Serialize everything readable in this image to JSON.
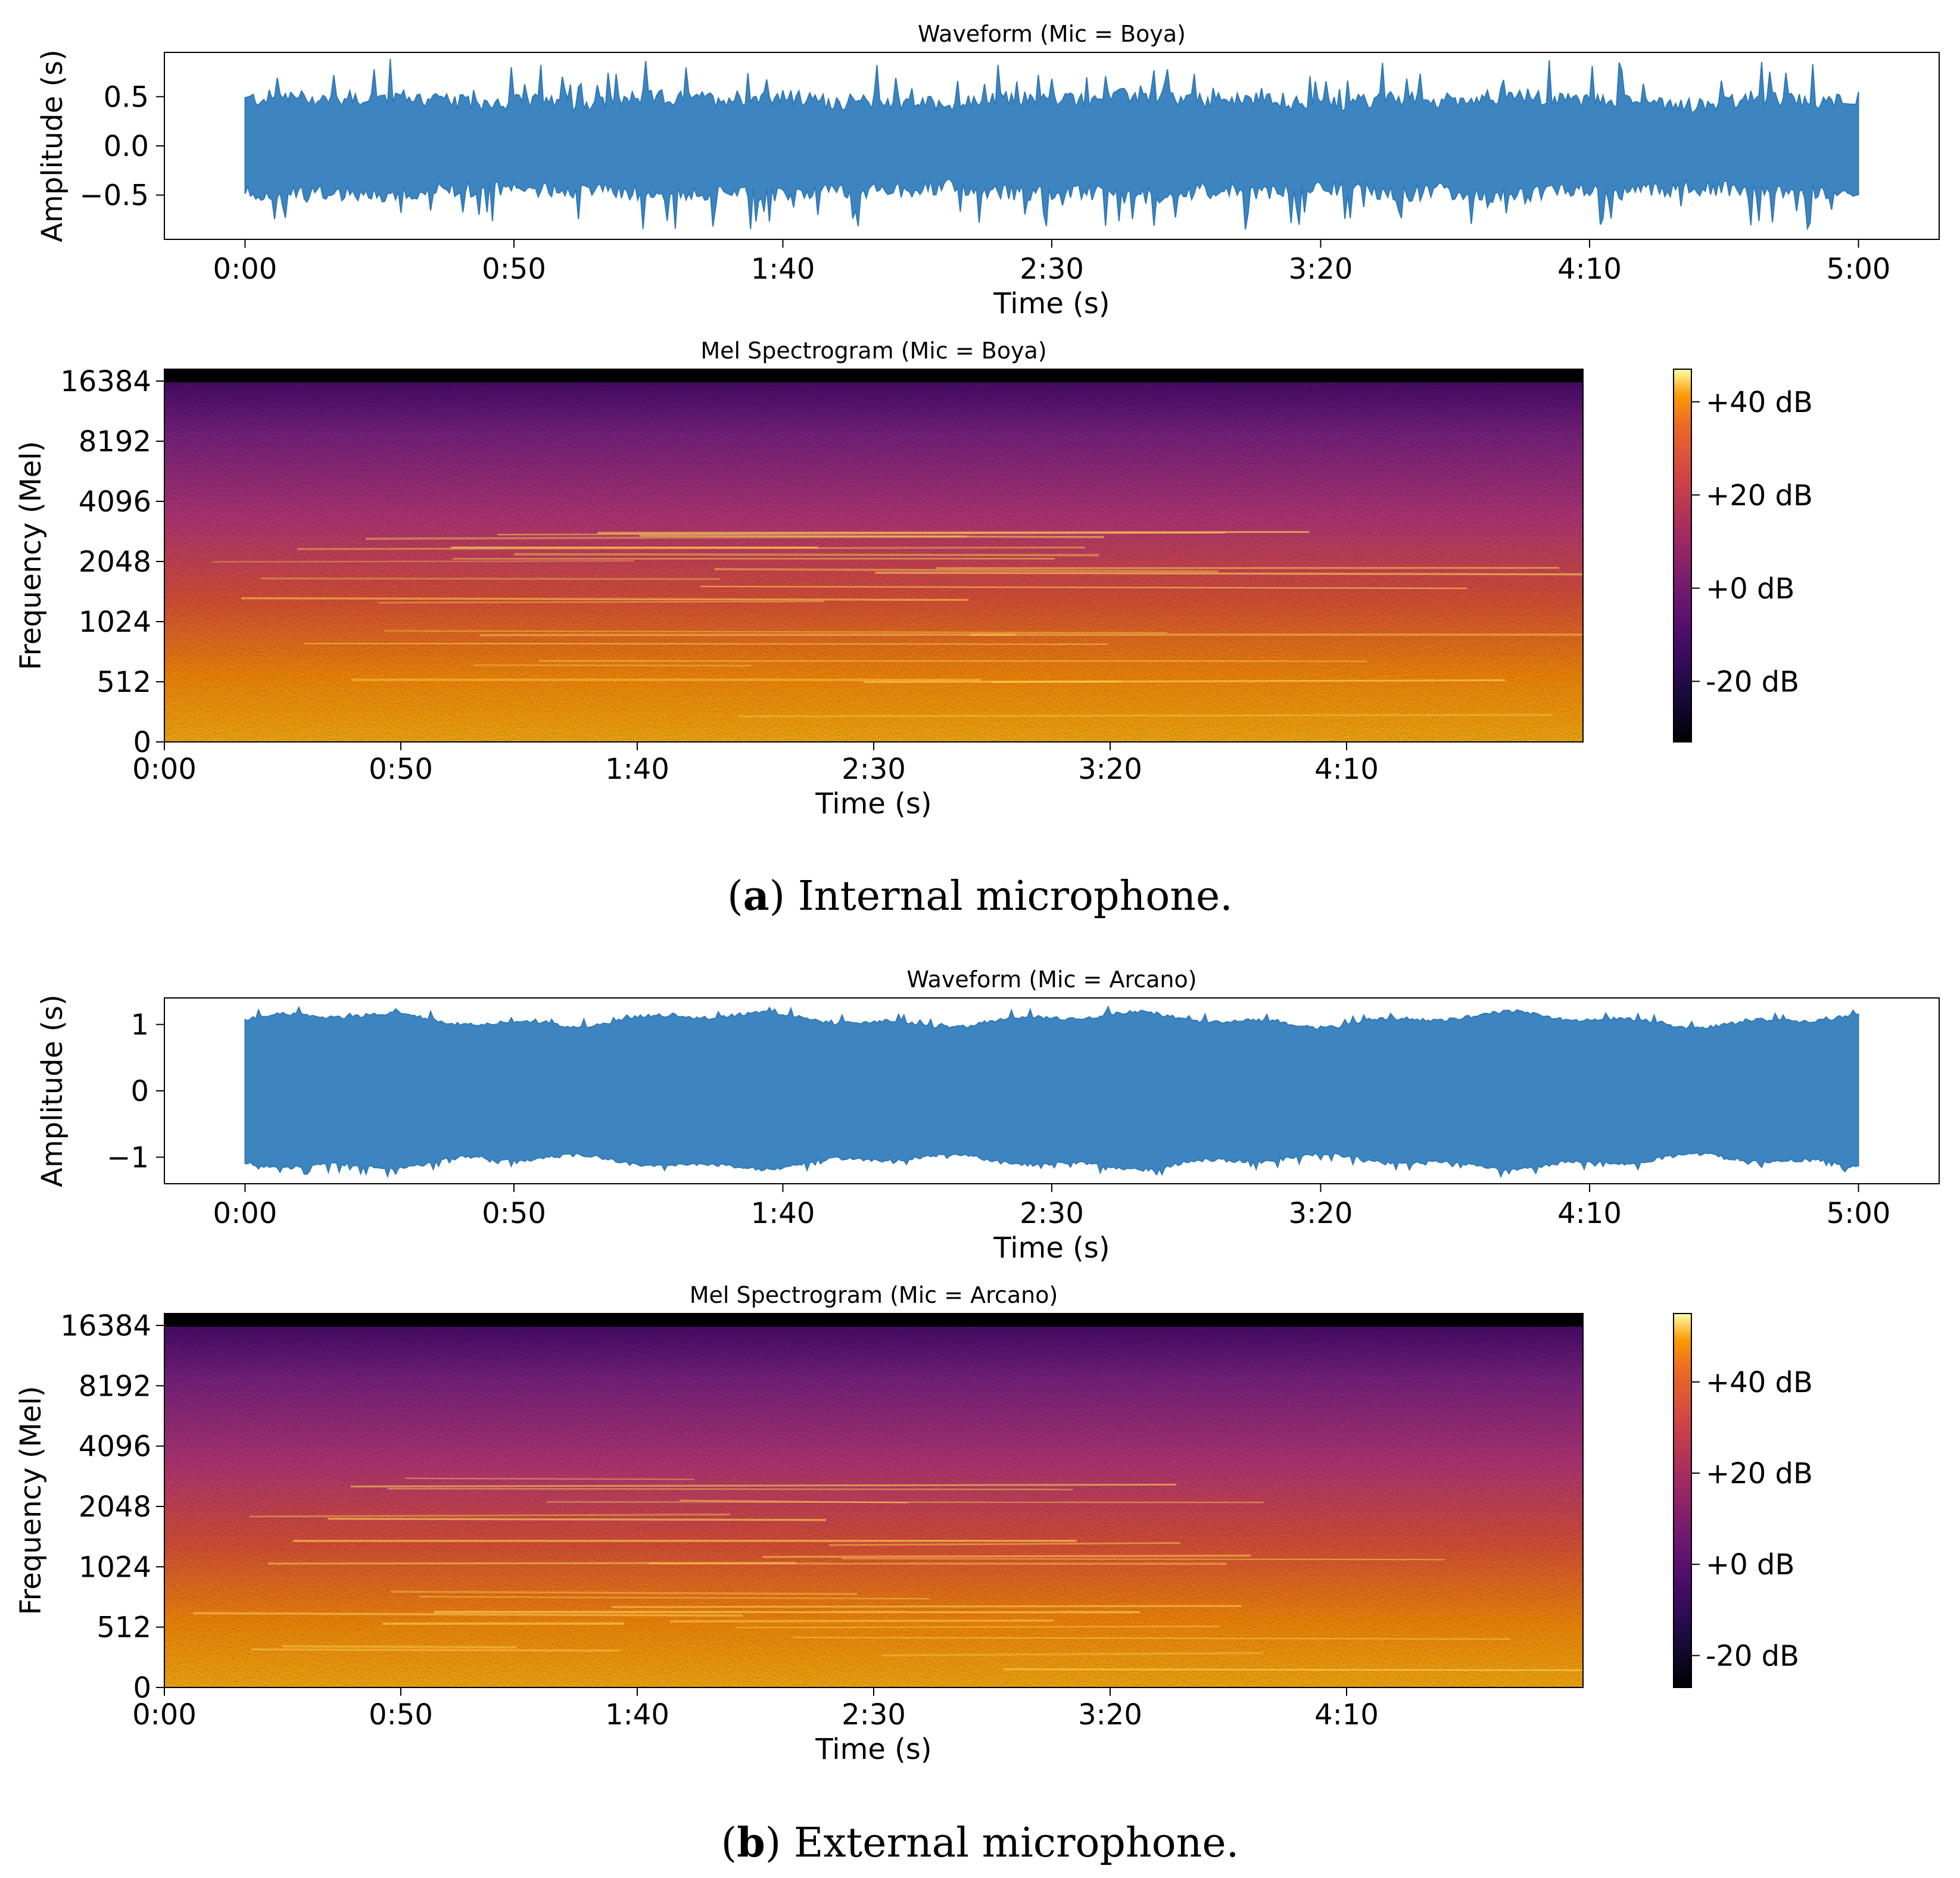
{
  "captions": {
    "a_letter": "a",
    "a_text": "Internal microphone.",
    "b_letter": "b",
    "b_text": "External microphone."
  },
  "colors": {
    "waveform": "#3d85c0",
    "waveform_edge": "#2f78b6",
    "spec_top_band": "#000004"
  },
  "chart_data": [
    {
      "id": "wave_a",
      "type": "area",
      "title": "Waveform (Mic = Boya)",
      "xlabel": "Time (s)",
      "ylabel": "Amplitude (s)",
      "x_ticks": [
        "0:00",
        "0:50",
        "1:40",
        "2:30",
        "3:20",
        "4:10",
        "5:00"
      ],
      "x_tick_values": [
        0,
        50,
        100,
        150,
        200,
        250,
        300
      ],
      "xlim": [
        -15,
        315
      ],
      "y_ticks": [
        "0.5",
        "0.0",
        "−0.5"
      ],
      "y_tick_values": [
        0.5,
        0.0,
        -0.5
      ],
      "ylim": [
        -0.95,
        0.95
      ],
      "envelope_typical": 0.4,
      "envelope_peak": 0.88,
      "duration_s": 300
    },
    {
      "id": "spec_a",
      "type": "heatmap",
      "title": "Mel Spectrogram (Mic = Boya)",
      "xlabel": "Time (s)",
      "ylabel": "Frequency (Mel)",
      "x_ticks": [
        "0:00",
        "0:50",
        "1:40",
        "2:30",
        "3:20",
        "4:10"
      ],
      "x_tick_values": [
        0,
        50,
        100,
        150,
        200,
        250
      ],
      "xlim": [
        0,
        300
      ],
      "y_ticks": [
        "16384",
        "8192",
        "4096",
        "2048",
        "1024",
        "512",
        "0"
      ],
      "colorbar_ticks": [
        "+40 dB",
        "+20 dB",
        "+0 dB",
        "-20 dB"
      ],
      "colorbar_values": [
        40,
        20,
        0,
        -20
      ],
      "colorbar_range": [
        -33,
        47
      ],
      "colormap": "inferno"
    },
    {
      "id": "wave_b",
      "type": "area",
      "title": "Waveform (Mic = Arcano)",
      "xlabel": "Time (s)",
      "ylabel": "Amplitude (s)",
      "x_ticks": [
        "0:00",
        "0:50",
        "1:40",
        "2:30",
        "3:20",
        "4:10",
        "5:00"
      ],
      "x_tick_values": [
        0,
        50,
        100,
        150,
        200,
        250,
        300
      ],
      "xlim": [
        -15,
        315
      ],
      "y_ticks": [
        "1",
        "0",
        "−1"
      ],
      "y_tick_values": [
        1,
        0,
        -1
      ],
      "ylim": [
        -1.4,
        1.4
      ],
      "envelope_typical": 1.1,
      "envelope_peak": 1.25,
      "duration_s": 300
    },
    {
      "id": "spec_b",
      "type": "heatmap",
      "title": "Mel Spectrogram (Mic = Arcano)",
      "xlabel": "Time (s)",
      "ylabel": "Frequency (Mel)",
      "x_ticks": [
        "0:00",
        "0:50",
        "1:40",
        "2:30",
        "3:20",
        "4:10"
      ],
      "x_tick_values": [
        0,
        50,
        100,
        150,
        200,
        250
      ],
      "xlim": [
        0,
        300
      ],
      "y_ticks": [
        "16384",
        "8192",
        "4096",
        "2048",
        "1024",
        "512",
        "0"
      ],
      "colorbar_ticks": [
        "+40 dB",
        "+20 dB",
        "+0 dB",
        "-20 dB"
      ],
      "colorbar_values": [
        40,
        20,
        0,
        -20
      ],
      "colorbar_range": [
        -27,
        55
      ],
      "colormap": "inferno"
    }
  ]
}
